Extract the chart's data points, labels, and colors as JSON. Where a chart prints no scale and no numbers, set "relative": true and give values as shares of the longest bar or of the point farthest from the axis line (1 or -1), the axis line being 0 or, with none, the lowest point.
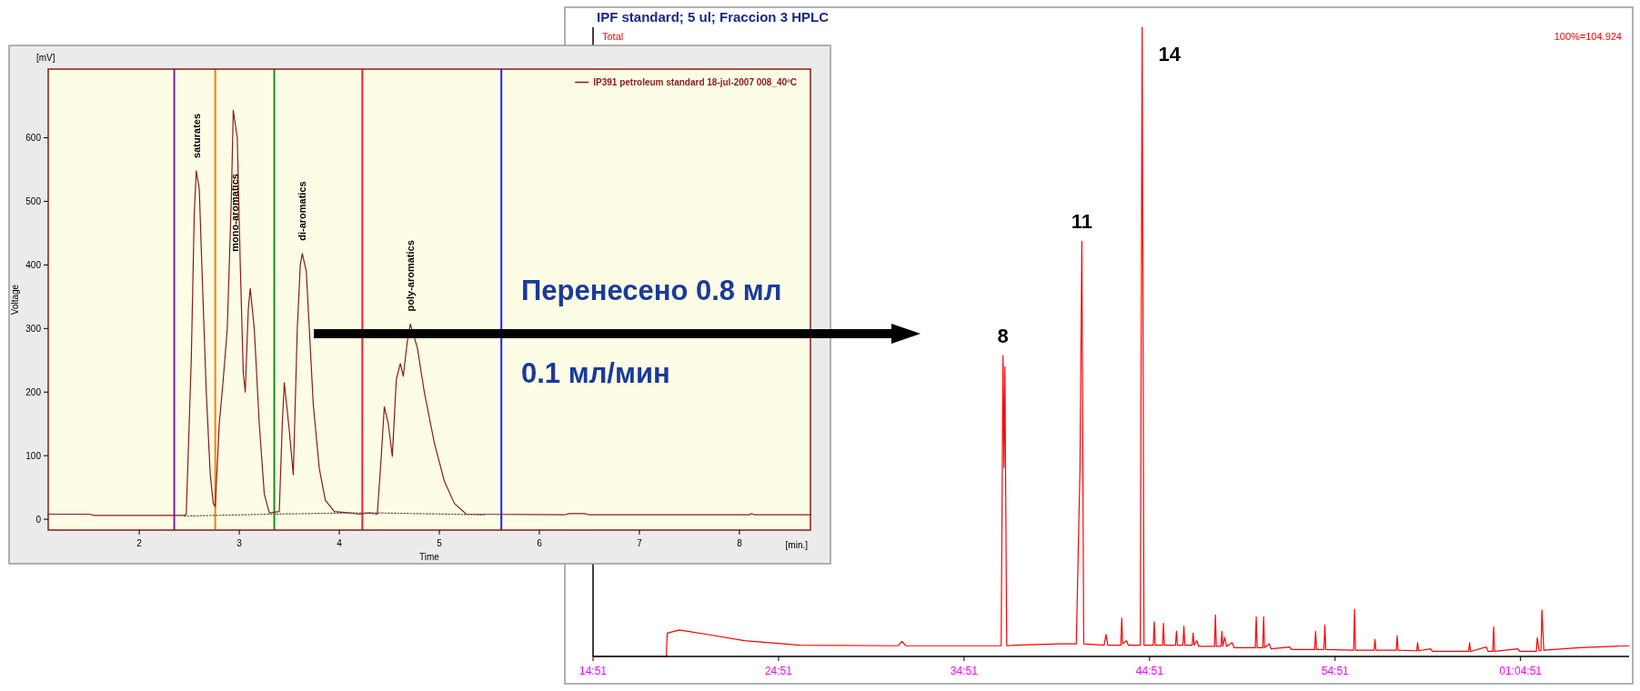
{
  "chart_data": [
    {
      "type": "line",
      "xlabel": "Time",
      "ylabel": "Voltage",
      "xlim": [
        1.09,
        8.71
      ],
      "xticks": [
        2,
        3,
        4,
        5,
        6,
        7,
        8
      ],
      "ylim": [
        -17,
        708
      ],
      "yticks": [
        0,
        100,
        200,
        300,
        400,
        500,
        600
      ],
      "legend": "top right",
      "series": [
        {
          "name": "IP391 petroleum standard 18-jul-2007 008_40ºC",
          "color": "#8b1a1a",
          "line_style": "solid",
          "x": [
            1.09,
            1.5,
            1.55,
            2.45,
            2.47,
            2.52,
            2.55,
            2.57,
            2.6,
            2.63,
            2.67,
            2.71,
            2.74,
            2.76,
            2.8,
            2.84,
            2.88,
            2.92,
            2.94,
            2.98,
            3.01,
            3.04,
            3.06,
            3.09,
            3.11,
            3.15,
            3.2,
            3.25,
            3.3,
            3.4,
            3.43,
            3.45,
            3.5,
            3.54,
            3.58,
            3.61,
            3.63,
            3.67,
            3.7,
            3.74,
            3.8,
            3.86,
            3.95,
            4.1,
            4.2,
            4.3,
            4.38,
            4.42,
            4.45,
            4.49,
            4.53,
            4.57,
            4.61,
            4.64,
            4.68,
            4.71,
            4.78,
            4.85,
            4.95,
            5.05,
            5.15,
            5.27,
            6.25,
            6.3,
            6.45,
            6.5,
            8.1,
            8.12,
            8.15,
            8.71
          ],
          "values": [
            8,
            8,
            6,
            6,
            8,
            250,
            480,
            548,
            520,
            380,
            200,
            70,
            25,
            20,
            150,
            220,
            300,
            500,
            643,
            600,
            400,
            230,
            200,
            330,
            363,
            300,
            150,
            40,
            10,
            12,
            150,
            215,
            140,
            70,
            300,
            400,
            418,
            390,
            300,
            180,
            80,
            30,
            12,
            10,
            8,
            10,
            8,
            100,
            177,
            150,
            99,
            220,
            245,
            225,
            280,
            307,
            270,
            200,
            120,
            60,
            25,
            8,
            7,
            9,
            9,
            7,
            7,
            9,
            7,
            7
          ]
        },
        {
          "color": "#555555",
          "line_style": "dotted",
          "x": [
            2.45,
            3.3,
            4.1,
            4.4,
            5.45
          ],
          "values": [
            5,
            8,
            10,
            10,
            7
          ]
        }
      ],
      "ref_lines": [
        {
          "axis": "x",
          "value": 2.35,
          "color": "#7b1fa2"
        },
        {
          "axis": "x",
          "value": 2.76,
          "color": "#ff7f00"
        },
        {
          "axis": "x",
          "value": 3.35,
          "color": "#1a8a1a"
        },
        {
          "axis": "x",
          "value": 4.23,
          "color": "#ff2020"
        },
        {
          "axis": "x",
          "value": 5.62,
          "color": "#2020ff"
        }
      ],
      "annotations": [
        "[mV]",
        "[min.]",
        {
          "text": "saturates",
          "x": 2.57,
          "y": 548
        },
        {
          "text": "mono-aromatics",
          "x": 2.95,
          "y": 401
        },
        {
          "text": "di-aromatics",
          "x": 3.63,
          "y": 418
        },
        {
          "text": "poly-aromatics",
          "x": 4.71,
          "y": 307
        },
        "Перенесено 0.8 мл",
        "0.1 мл/мин"
      ]
    },
    {
      "type": "line",
      "title": "IPF standard; 5 ul; Fraccion 3 HPLC",
      "relative": true,
      "xlim": [
        14.85,
        70.7
      ],
      "xticks": [
        {
          "value": 14.85,
          "label": "14:51"
        },
        {
          "value": 24.85,
          "label": "24:51"
        },
        {
          "value": 34.85,
          "label": "34:51"
        },
        {
          "value": 44.85,
          "label": "44:51"
        },
        {
          "value": 54.85,
          "label": "54:51"
        },
        {
          "value": 64.85,
          "label": "01:04:51"
        }
      ],
      "series": [
        {
          "color": "#ff0000",
          "x": [
            14.85,
            18.8,
            18.85,
            19.5,
            21,
            23,
            26,
            31.3,
            31.5,
            31.7,
            36.0,
            36.85,
            36.95,
            37.0,
            37.05,
            37.15,
            37.6,
            40.0,
            40.9,
            41.1,
            41.2,
            41.3,
            42.4,
            42.5,
            42.6,
            43.3,
            43.35,
            43.4,
            43.6,
            43.7,
            44.35,
            44.45,
            44.55,
            45.05,
            45.1,
            45.15,
            45.55,
            45.6,
            45.65,
            46.25,
            46.3,
            46.35,
            46.65,
            46.7,
            46.75,
            47.15,
            47.2,
            47.25,
            47.4,
            47.5,
            48.35,
            48.4,
            48.45,
            48.7,
            48.75,
            48.8,
            48.9,
            49.0,
            49.3,
            49.4,
            50.55,
            50.6,
            50.65,
            50.95,
            51.0,
            51.05,
            51.3,
            51.4,
            52.4,
            52.5,
            53.75,
            53.8,
            53.85,
            54.25,
            54.3,
            54.35,
            55.85,
            55.9,
            55.95,
            56.95,
            57.0,
            57.05,
            58.15,
            58.2,
            58.25,
            59.25,
            59.3,
            59.35,
            60.0,
            60.1,
            62.05,
            62.1,
            62.15,
            63.0,
            63.1,
            63.35,
            63.4,
            63.45,
            64.7,
            64.8,
            65.7,
            65.75,
            65.85,
            65.95,
            66.0,
            66.1,
            68,
            70.7
          ],
          "values": [
            0,
            0,
            0.037,
            0.042,
            0.035,
            0.025,
            0.018,
            0.017,
            0.024,
            0.017,
            0.017,
            0.017,
            0.478,
            0.3,
            0.46,
            0.017,
            0.018,
            0.02,
            0.02,
            0.3,
            0.66,
            0.02,
            0.018,
            0.035,
            0.018,
            0.018,
            0.061,
            0.02,
            0.025,
            0.018,
            0.018,
            1.0,
            0.018,
            0.018,
            0.055,
            0.018,
            0.018,
            0.053,
            0.018,
            0.018,
            0.04,
            0.018,
            0.018,
            0.048,
            0.018,
            0.018,
            0.037,
            0.018,
            0.025,
            0.016,
            0.016,
            0.066,
            0.016,
            0.016,
            0.04,
            0.016,
            0.03,
            0.016,
            0.022,
            0.014,
            0.014,
            0.063,
            0.014,
            0.014,
            0.063,
            0.014,
            0.02,
            0.012,
            0.015,
            0.011,
            0.011,
            0.04,
            0.011,
            0.011,
            0.05,
            0.011,
            0.01,
            0.075,
            0.01,
            0.01,
            0.027,
            0.01,
            0.01,
            0.033,
            0.01,
            0.009,
            0.022,
            0.009,
            0.012,
            0.008,
            0.008,
            0.022,
            0.008,
            0.015,
            0.008,
            0.008,
            0.047,
            0.008,
            0.012,
            0.008,
            0.008,
            0.03,
            0.009,
            0.009,
            0.074,
            0.01,
            0.014,
            0.017
          ]
        }
      ],
      "annotations": [
        "Total",
        "100%=104.924",
        {
          "text": "8",
          "x": 36.95,
          "y": 0.478
        },
        {
          "text": "11",
          "x": 41.2,
          "y": 0.66
        },
        {
          "text": "14",
          "x": 44.45,
          "y": 1.0
        }
      ]
    }
  ]
}
